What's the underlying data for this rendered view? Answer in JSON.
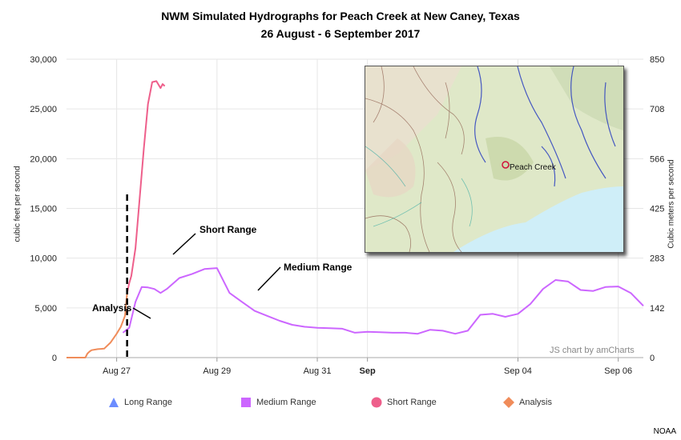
{
  "chart_data": {
    "type": "line",
    "title": "NWM Simulated Hydrographs for Peach Creek at New Caney, Texas",
    "subtitle": "26 August - 6 September 2017",
    "ylabel_left": "cubic feet per second",
    "ylabel_right": "Cubic meters per second",
    "ylim_left": [
      0,
      30000
    ],
    "ylim_right": [
      0,
      850
    ],
    "yticks_left": [
      "0",
      "5,000",
      "10,000",
      "15,000",
      "20,000",
      "25,000",
      "30,000"
    ],
    "yticks_right": [
      "0",
      "142",
      "283",
      "425",
      "566",
      "708",
      "850"
    ],
    "xlim": [
      "2017-08-26 00:00",
      "2017-09-06 12:00"
    ],
    "xticks": [
      {
        "label": "Aug 27",
        "date": "2017-08-27",
        "bold": false
      },
      {
        "label": "Aug 29",
        "date": "2017-08-29",
        "bold": false
      },
      {
        "label": "Aug 31",
        "date": "2017-08-31",
        "bold": false
      },
      {
        "label": "Sep",
        "date": "2017-09-01",
        "bold": true
      },
      {
        "label": "Sep 04",
        "date": "2017-09-04",
        "bold": false
      },
      {
        "label": "Sep 06",
        "date": "2017-09-06",
        "bold": false
      }
    ],
    "grid": true,
    "legend_position": "bottom",
    "series": [
      {
        "name": "Long Range",
        "color": "#6b8cff",
        "marker": "triangle",
        "x": [],
        "y": []
      },
      {
        "name": "Medium Range",
        "color": "#cc66ff",
        "marker": "square",
        "x": [
          "2017-08-27 03:00",
          "2017-08-27 06:00",
          "2017-08-27 09:00",
          "2017-08-27 12:00",
          "2017-08-27 15:00",
          "2017-08-27 18:00",
          "2017-08-27 21:00",
          "2017-08-28 00:00",
          "2017-08-28 06:00",
          "2017-08-28 12:00",
          "2017-08-28 18:00",
          "2017-08-29 00:00",
          "2017-08-29 06:00",
          "2017-08-29 12:00",
          "2017-08-29 18:00",
          "2017-08-30 00:00",
          "2017-08-30 06:00",
          "2017-08-30 12:00",
          "2017-08-30 18:00",
          "2017-08-31 00:00",
          "2017-08-31 06:00",
          "2017-08-31 12:00",
          "2017-08-31 18:00",
          "2017-09-01 00:00",
          "2017-09-01 06:00",
          "2017-09-01 12:00",
          "2017-09-01 18:00",
          "2017-09-02 00:00",
          "2017-09-02 06:00",
          "2017-09-02 12:00",
          "2017-09-02 18:00",
          "2017-09-03 00:00",
          "2017-09-03 06:00",
          "2017-09-03 12:00",
          "2017-09-03 18:00",
          "2017-09-04 00:00",
          "2017-09-04 06:00",
          "2017-09-04 12:00",
          "2017-09-04 18:00",
          "2017-09-05 00:00",
          "2017-09-05 06:00",
          "2017-09-05 12:00",
          "2017-09-05 18:00",
          "2017-09-06 00:00",
          "2017-09-06 06:00",
          "2017-09-06 12:00"
        ],
        "y": [
          2500,
          3000,
          5600,
          7100,
          7050,
          6900,
          6500,
          6900,
          8000,
          8400,
          8900,
          9000,
          6500,
          5600,
          4700,
          4200,
          3700,
          3300,
          3100,
          3000,
          2950,
          2900,
          2500,
          2600,
          2550,
          2500,
          2500,
          2400,
          2800,
          2700,
          2400,
          2700,
          4300,
          4400,
          4100,
          4400,
          5400,
          6900,
          7800,
          7650,
          6800,
          6700,
          7100,
          7150,
          6500,
          5200
        ]
      },
      {
        "name": "Short Range",
        "color": "#ee5f8b",
        "marker": "circle",
        "x": [
          "2017-08-27 05:00",
          "2017-08-27 06:00",
          "2017-08-27 07:00",
          "2017-08-27 09:00",
          "2017-08-27 11:00",
          "2017-08-27 13:00",
          "2017-08-27 15:00",
          "2017-08-27 17:00",
          "2017-08-27 19:00",
          "2017-08-27 21:00",
          "2017-08-27 22:00",
          "2017-08-27 23:00"
        ],
        "y": [
          6500,
          7500,
          8200,
          11000,
          16000,
          21000,
          25500,
          27700,
          27800,
          27100,
          27500,
          27300
        ]
      },
      {
        "name": "Analysis",
        "color": "#f08c5a",
        "marker": "diamond",
        "x": [
          "2017-08-26 00:00",
          "2017-08-26 06:00",
          "2017-08-26 09:00",
          "2017-08-26 10:00",
          "2017-08-26 11:00",
          "2017-08-26 12:00",
          "2017-08-26 15:00",
          "2017-08-26 18:00",
          "2017-08-26 21:00",
          "2017-08-27 00:00",
          "2017-08-27 02:00",
          "2017-08-27 04:00",
          "2017-08-27 05:00"
        ],
        "y": [
          0,
          0,
          0,
          400,
          600,
          750,
          850,
          900,
          1500,
          2400,
          3100,
          4200,
          6500
        ]
      }
    ],
    "annotations": [
      {
        "text": "Short Range",
        "series": "Short Range"
      },
      {
        "text": "Medium Range",
        "series": "Medium Range"
      },
      {
        "text": "Analysis",
        "series": "Analysis"
      }
    ],
    "forecast_start": "2017-08-27 05:00"
  },
  "credit": "JS chart by amCharts",
  "inset_map": {
    "label": "Peach Creek"
  },
  "source": "NOAA"
}
